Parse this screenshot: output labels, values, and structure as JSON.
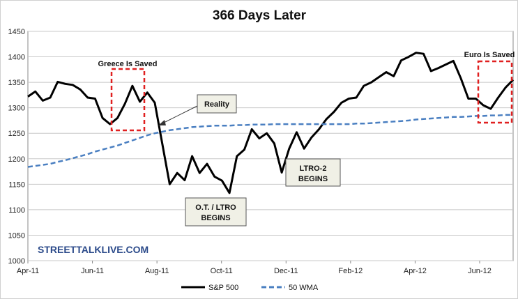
{
  "chart_data": {
    "type": "line",
    "title": "366 Days Later",
    "xlabel": "",
    "ylabel": "",
    "x_tick_labels": [
      "Apr-11",
      "Jun-11",
      "Aug-11",
      "Oct-11",
      "Dec-11",
      "Feb-12",
      "Apr-12",
      "Jun-12"
    ],
    "y_tick_labels": [
      "1000",
      "1050",
      "1100",
      "1150",
      "1200",
      "1250",
      "1300",
      "1350",
      "1400",
      "1450"
    ],
    "ylim": [
      1000,
      1450
    ],
    "grid": "horizontal",
    "legend_position": "bottom",
    "series": [
      {
        "name": "S&P 500",
        "color": "#000000",
        "style": "solid",
        "values": [
          1322,
          1332,
          1314,
          1320,
          1351,
          1347,
          1345,
          1336,
          1320,
          1318,
          1280,
          1268,
          1280,
          1308,
          1343,
          1312,
          1330,
          1310,
          1230,
          1150,
          1172,
          1158,
          1205,
          1172,
          1190,
          1165,
          1157,
          1133,
          1205,
          1218,
          1258,
          1240,
          1250,
          1230,
          1173,
          1220,
          1252,
          1220,
          1242,
          1258,
          1278,
          1292,
          1310,
          1318,
          1320,
          1343,
          1350,
          1360,
          1370,
          1362,
          1393,
          1400,
          1408,
          1406,
          1372,
          1378,
          1385,
          1392,
          1358,
          1318,
          1318,
          1305,
          1298,
          1320,
          1340,
          1355
        ]
      },
      {
        "name": "50 WMA",
        "color": "#4a7fc1",
        "style": "dashed",
        "values": [
          1184,
          1186,
          1188,
          1190,
          1194,
          1197,
          1201,
          1205,
          1209,
          1214,
          1218,
          1222,
          1226,
          1231,
          1236,
          1241,
          1246,
          1250,
          1253,
          1256,
          1258,
          1260,
          1262,
          1263,
          1264,
          1265,
          1265,
          1265,
          1266,
          1266,
          1267,
          1267,
          1267,
          1268,
          1268,
          1268,
          1268,
          1268,
          1268,
          1268,
          1268,
          1268,
          1268,
          1268,
          1269,
          1269,
          1270,
          1271,
          1272,
          1273,
          1274,
          1275,
          1277,
          1278,
          1279,
          1280,
          1281,
          1282,
          1282,
          1283,
          1284,
          1284,
          1285,
          1285,
          1286,
          1286
        ]
      }
    ],
    "annotations": [
      {
        "text": "Greece Is Saved",
        "kind": "label"
      },
      {
        "text": "Euro Is Saved",
        "kind": "label"
      },
      {
        "text": "Reality",
        "kind": "box"
      },
      {
        "text": "O.T. / LTRO",
        "text2": "BEGINS",
        "kind": "box"
      },
      {
        "text": "LTRO-2",
        "text2": "BEGINS",
        "kind": "box"
      }
    ],
    "watermark": "STREETTALKLIVE.COM"
  }
}
